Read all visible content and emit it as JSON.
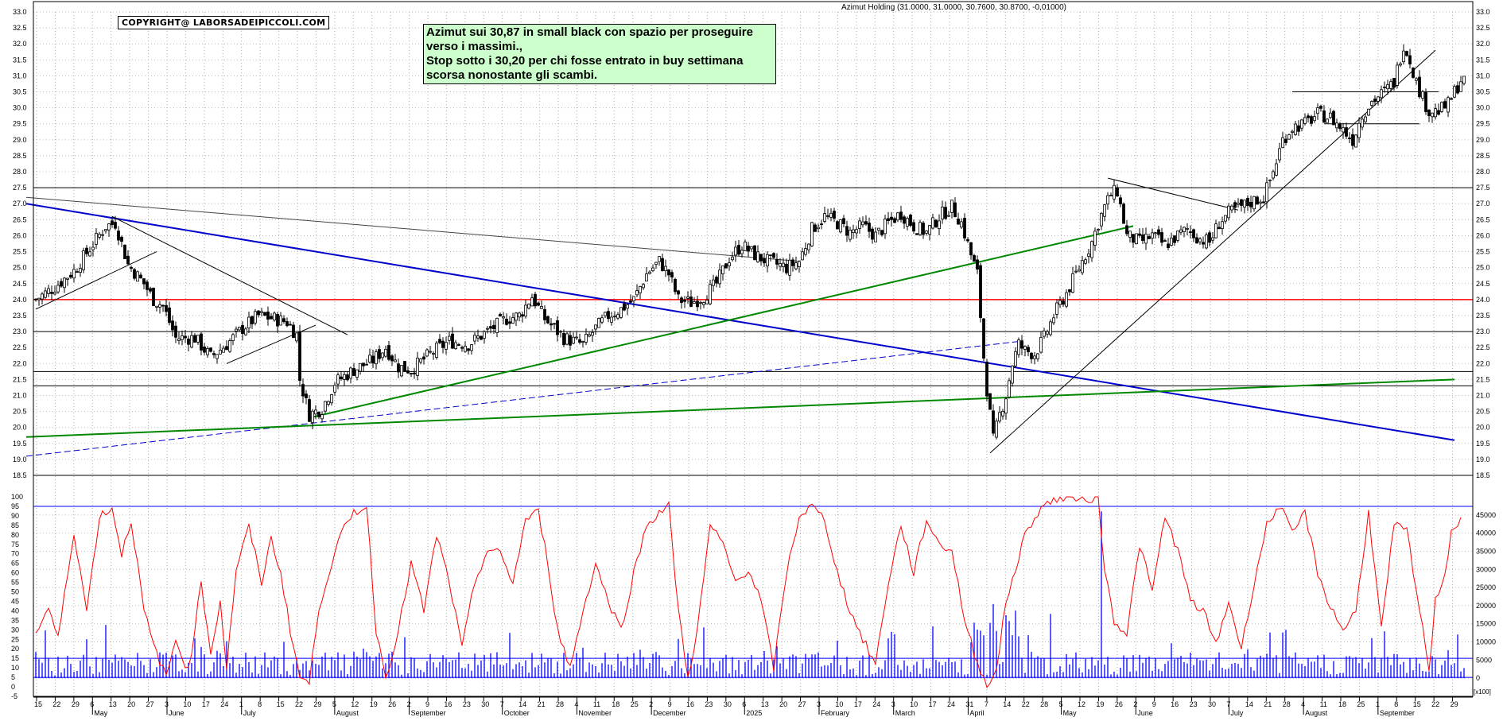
{
  "chart_title": "Azimut Holding (31.0000, 31.0000, 30.7600, 30.8700, -0,01000)",
  "copyright": "COPYRIGHT@ LABORSADEIPICCOLI.COM",
  "comment_lines": [
    "Azimut sui 30,87 in small black con spazio per proseguire",
    "verso i massimi.,",
    "Stop sotto i 30,20 per chi fosse entrato in buy settimana",
    "scorsa nonostante gli scambi."
  ],
  "bottom_right_label": "[x100]",
  "colors": {
    "candle_up": "#ffffff",
    "candle_down": "#000000",
    "blue_trendline": "#0000cc",
    "green_trendline": "#008800",
    "red_support": "#ff0000",
    "oscillator": "#ff0000",
    "volume": "#0000ff",
    "grid": "#999999"
  },
  "chart_data": {
    "type": "candlestick",
    "title": "Azimut Holding (31.0000, 31.0000, 30.7600, 30.8700, -0,01000)",
    "x_axis": {
      "day_ticks": [
        "15",
        "22",
        "29",
        "6",
        "13",
        "20",
        "27",
        "3",
        "10",
        "17",
        "24",
        "1",
        "8",
        "15",
        "22",
        "29",
        "5",
        "12",
        "19",
        "26",
        "2",
        "9",
        "16",
        "23",
        "30",
        "7",
        "14",
        "21",
        "28",
        "4",
        "11",
        "18",
        "25",
        "2",
        "9",
        "16",
        "23",
        "30",
        "6",
        "13",
        "20",
        "27",
        "3",
        "10",
        "17",
        "24",
        "3",
        "10",
        "17",
        "24",
        "31",
        "7",
        "14",
        "22",
        "28",
        "5",
        "12",
        "19",
        "26",
        "2",
        "9",
        "16",
        "23",
        "30",
        "7",
        "14",
        "21",
        "28",
        "4",
        "11",
        "18",
        "25",
        "1",
        "8",
        "15",
        "22",
        "29"
      ],
      "month_labels": [
        "May",
        "June",
        "July",
        "August",
        "September",
        "October",
        "November",
        "December",
        "2025",
        "February",
        "March",
        "April",
        "May",
        "June",
        "July",
        "August",
        "September"
      ]
    },
    "price_panel": {
      "ylim": [
        18.5,
        33.0
      ],
      "ticks": [
        "33.0",
        "32.5",
        "32.0",
        "31.5",
        "31.0",
        "30.5",
        "30.0",
        "29.5",
        "29.0",
        "28.5",
        "28.0",
        "27.5",
        "27.0",
        "26.5",
        "26.0",
        "25.5",
        "25.0",
        "24.5",
        "24.0",
        "23.5",
        "23.0",
        "22.5",
        "22.0",
        "21.5",
        "21.0",
        "20.5",
        "20.0",
        "19.5",
        "19.0",
        "18.5"
      ],
      "close_path": [
        [
          0,
          24.0
        ],
        [
          6,
          24.4
        ],
        [
          12,
          24.9
        ],
        [
          17,
          25.6
        ],
        [
          22,
          26.3
        ],
        [
          25,
          26.4
        ],
        [
          29,
          25.1
        ],
        [
          34,
          24.5
        ],
        [
          37,
          24.0
        ],
        [
          40,
          23.8
        ],
        [
          44,
          22.8
        ],
        [
          50,
          22.8
        ],
        [
          55,
          22.2
        ],
        [
          60,
          22.6
        ],
        [
          65,
          23.1
        ],
        [
          70,
          23.5
        ],
        [
          75,
          23.4
        ],
        [
          79,
          23.3
        ],
        [
          82,
          22.9
        ],
        [
          83,
          21.5
        ],
        [
          86,
          20.4
        ],
        [
          90,
          20.6
        ],
        [
          94,
          21.4
        ],
        [
          100,
          21.8
        ],
        [
          106,
          22.1
        ],
        [
          110,
          22.5
        ],
        [
          114,
          21.9
        ],
        [
          118,
          21.8
        ],
        [
          124,
          22.3
        ],
        [
          130,
          22.7
        ],
        [
          136,
          22.6
        ],
        [
          142,
          23.0
        ],
        [
          148,
          23.4
        ],
        [
          152,
          23.5
        ],
        [
          156,
          24.1
        ],
        [
          160,
          23.4
        ],
        [
          166,
          22.8
        ],
        [
          172,
          22.6
        ],
        [
          176,
          23.1
        ],
        [
          180,
          23.5
        ],
        [
          184,
          23.7
        ],
        [
          188,
          24.0
        ],
        [
          192,
          24.8
        ],
        [
          196,
          25.2
        ],
        [
          199,
          24.8
        ],
        [
          202,
          24.0
        ],
        [
          206,
          23.9
        ],
        [
          210,
          24.1
        ],
        [
          214,
          24.5
        ],
        [
          218,
          25.3
        ],
        [
          222,
          25.7
        ],
        [
          226,
          25.4
        ],
        [
          230,
          25.2
        ],
        [
          236,
          25.0
        ],
        [
          240,
          25.2
        ],
        [
          244,
          26.2
        ],
        [
          248,
          26.6
        ],
        [
          252,
          26.4
        ],
        [
          256,
          26.1
        ],
        [
          260,
          26.3
        ],
        [
          264,
          26.0
        ],
        [
          268,
          26.4
        ],
        [
          272,
          26.7
        ],
        [
          276,
          26.3
        ],
        [
          280,
          26.1
        ],
        [
          284,
          26.6
        ],
        [
          288,
          26.9
        ],
        [
          291,
          26.4
        ],
        [
          294,
          25.4
        ],
        [
          296,
          24.8
        ],
        [
          297,
          23.5
        ],
        [
          298,
          22.2
        ],
        [
          299,
          21.2
        ],
        [
          301,
          19.6
        ],
        [
          303,
          20.4
        ],
        [
          305,
          21.0
        ],
        [
          307,
          22.0
        ],
        [
          309,
          22.6
        ],
        [
          311,
          22.4
        ],
        [
          314,
          22.3
        ],
        [
          317,
          22.8
        ],
        [
          320,
          23.5
        ],
        [
          324,
          24.2
        ],
        [
          328,
          25.0
        ],
        [
          332,
          25.8
        ],
        [
          334,
          26.4
        ],
        [
          336,
          26.9
        ],
        [
          338,
          27.3
        ],
        [
          340,
          27.4
        ],
        [
          343,
          26.0
        ],
        [
          347,
          25.8
        ],
        [
          351,
          26.0
        ],
        [
          355,
          25.7
        ],
        [
          359,
          26.0
        ],
        [
          362,
          26.2
        ],
        [
          366,
          25.9
        ],
        [
          369,
          25.8
        ],
        [
          372,
          26.4
        ],
        [
          375,
          26.7
        ],
        [
          379,
          26.9
        ],
        [
          383,
          27.1
        ],
        [
          386,
          27.2
        ],
        [
          389,
          28.0
        ],
        [
          392,
          29.0
        ],
        [
          395,
          29.4
        ],
        [
          399,
          29.5
        ],
        [
          403,
          29.8
        ],
        [
          407,
          29.7
        ],
        [
          411,
          29.3
        ],
        [
          414,
          29.0
        ],
        [
          417,
          29.8
        ],
        [
          420,
          30.2
        ],
        [
          424,
          30.5
        ],
        [
          427,
          30.8
        ],
        [
          429,
          31.6
        ],
        [
          430,
          32.0
        ],
        [
          432,
          31.5
        ],
        [
          434,
          30.8
        ],
        [
          436,
          30.3
        ],
        [
          438,
          29.9
        ],
        [
          441,
          29.9
        ],
        [
          444,
          30.1
        ],
        [
          446,
          30.5
        ],
        [
          448,
          30.87
        ]
      ],
      "horizontal_lines": [
        {
          "value": 27.5,
          "color": "#000000"
        },
        {
          "value": 24.0,
          "color": "#ff0000"
        },
        {
          "value": 23.0,
          "color": "#000000"
        },
        {
          "value": 21.75,
          "color": "#000000"
        },
        {
          "value": 21.3,
          "color": "#000000"
        }
      ],
      "trendlines": [
        {
          "color": "#0000cc",
          "width": 2,
          "dash": "",
          "from": [
            -3,
            27.0
          ],
          "to": [
            446,
            19.6
          ]
        },
        {
          "color": "#0000cc",
          "width": 1,
          "dash": "8,4",
          "from": [
            -3,
            19.1
          ],
          "to": [
            310,
            22.7
          ]
        },
        {
          "color": "#008800",
          "width": 2,
          "dash": "",
          "from": [
            -3,
            19.7
          ],
          "to": [
            446,
            21.5
          ]
        },
        {
          "color": "#008800",
          "width": 2,
          "dash": "",
          "from": [
            86,
            20.3
          ],
          "to": [
            345,
            26.3
          ]
        },
        {
          "color": "#444444",
          "width": 1,
          "dash": "",
          "from": [
            -3,
            27.2
          ],
          "to": [
            240,
            25.2
          ]
        },
        {
          "color": "#000000",
          "width": 1,
          "dash": "",
          "from": [
            0,
            23.7
          ],
          "to": [
            38,
            25.5
          ]
        },
        {
          "color": "#000000",
          "width": 1,
          "dash": "",
          "from": [
            24,
            26.6
          ],
          "to": [
            98,
            22.9
          ]
        },
        {
          "color": "#000000",
          "width": 1,
          "dash": "",
          "from": [
            60,
            22.0
          ],
          "to": [
            88,
            23.2
          ]
        },
        {
          "color": "#000000",
          "width": 1,
          "dash": "",
          "from": [
            337,
            27.8
          ],
          "to": [
            378,
            26.8
          ]
        },
        {
          "color": "#000000",
          "width": 1,
          "dash": "",
          "from": [
            300,
            19.2
          ],
          "to": [
            440,
            31.8
          ]
        },
        {
          "color": "#000000",
          "width": 1,
          "dash": "",
          "from": [
            395,
            30.5
          ],
          "to": [
            441,
            30.5
          ]
        },
        {
          "color": "#000000",
          "width": 1,
          "dash": "",
          "from": [
            405,
            29.5
          ],
          "to": [
            435,
            29.5
          ]
        }
      ]
    },
    "oscillator_panel": {
      "ylim": [
        -5,
        100
      ],
      "ticks": [
        "100",
        "95",
        "90",
        "85",
        "80",
        "75",
        "70",
        "65",
        "60",
        "55",
        "50",
        "45",
        "40",
        "35",
        "30",
        "25",
        "20",
        "15",
        "10",
        "5",
        "0",
        "-5"
      ],
      "levels": [
        95,
        5
      ],
      "pivots": [
        [
          0,
          28
        ],
        [
          4,
          42
        ],
        [
          7,
          25
        ],
        [
          12,
          82
        ],
        [
          16,
          40
        ],
        [
          20,
          90
        ],
        [
          24,
          94
        ],
        [
          27,
          70
        ],
        [
          30,
          88
        ],
        [
          34,
          40
        ],
        [
          37,
          22
        ],
        [
          41,
          5
        ],
        [
          44,
          25
        ],
        [
          48,
          8
        ],
        [
          52,
          55
        ],
        [
          55,
          18
        ],
        [
          58,
          45
        ],
        [
          60,
          10
        ],
        [
          63,
          62
        ],
        [
          67,
          84
        ],
        [
          71,
          55
        ],
        [
          74,
          78
        ],
        [
          77,
          60
        ],
        [
          80,
          30
        ],
        [
          83,
          5
        ],
        [
          86,
          2
        ],
        [
          89,
          42
        ],
        [
          93,
          65
        ],
        [
          96,
          80
        ],
        [
          100,
          92
        ],
        [
          104,
          95
        ],
        [
          107,
          30
        ],
        [
          110,
          5
        ],
        [
          114,
          30
        ],
        [
          118,
          65
        ],
        [
          122,
          40
        ],
        [
          126,
          80
        ],
        [
          130,
          55
        ],
        [
          134,
          20
        ],
        [
          138,
          55
        ],
        [
          142,
          72
        ],
        [
          146,
          70
        ],
        [
          150,
          55
        ],
        [
          154,
          88
        ],
        [
          158,
          92
        ],
        [
          161,
          65
        ],
        [
          164,
          30
        ],
        [
          168,
          10
        ],
        [
          172,
          40
        ],
        [
          176,
          65
        ],
        [
          180,
          45
        ],
        [
          184,
          30
        ],
        [
          188,
          60
        ],
        [
          192,
          85
        ],
        [
          196,
          92
        ],
        [
          199,
          95
        ],
        [
          202,
          40
        ],
        [
          205,
          5
        ],
        [
          208,
          30
        ],
        [
          212,
          85
        ],
        [
          216,
          75
        ],
        [
          220,
          55
        ],
        [
          224,
          62
        ],
        [
          228,
          45
        ],
        [
          232,
          10
        ],
        [
          236,
          60
        ],
        [
          240,
          90
        ],
        [
          244,
          95
        ],
        [
          248,
          88
        ],
        [
          252,
          60
        ],
        [
          256,
          40
        ],
        [
          260,
          25
        ],
        [
          264,
          12
        ],
        [
          268,
          55
        ],
        [
          272,
          85
        ],
        [
          276,
          60
        ],
        [
          280,
          88
        ],
        [
          284,
          75
        ],
        [
          288,
          72
        ],
        [
          292,
          35
        ],
        [
          296,
          12
        ],
        [
          299,
          2
        ],
        [
          302,
          8
        ],
        [
          305,
          45
        ],
        [
          308,
          62
        ],
        [
          311,
          80
        ],
        [
          315,
          92
        ],
        [
          319,
          98
        ],
        [
          323,
          99
        ],
        [
          327,
          100
        ],
        [
          331,
          99
        ],
        [
          334,
          100
        ],
        [
          336,
          62
        ],
        [
          339,
          35
        ],
        [
          343,
          28
        ],
        [
          347,
          75
        ],
        [
          351,
          50
        ],
        [
          355,
          90
        ],
        [
          359,
          72
        ],
        [
          363,
          45
        ],
        [
          367,
          40
        ],
        [
          371,
          22
        ],
        [
          375,
          45
        ],
        [
          379,
          20
        ],
        [
          383,
          55
        ],
        [
          387,
          85
        ],
        [
          391,
          96
        ],
        [
          395,
          80
        ],
        [
          399,
          92
        ],
        [
          403,
          60
        ],
        [
          407,
          42
        ],
        [
          411,
          30
        ],
        [
          415,
          40
        ],
        [
          419,
          92
        ],
        [
          423,
          30
        ],
        [
          427,
          85
        ],
        [
          431,
          82
        ],
        [
          435,
          40
        ],
        [
          438,
          10
        ],
        [
          440,
          45
        ],
        [
          443,
          60
        ],
        [
          445,
          82
        ],
        [
          448,
          88
        ]
      ]
    },
    "volume_panel": {
      "ylim": [
        -5000,
        50000
      ],
      "ticks": [
        "45000",
        "40000",
        "35000",
        "30000",
        "25000",
        "20000",
        "15000",
        "10000",
        "5000",
        "0"
      ],
      "level": 5500
    }
  }
}
